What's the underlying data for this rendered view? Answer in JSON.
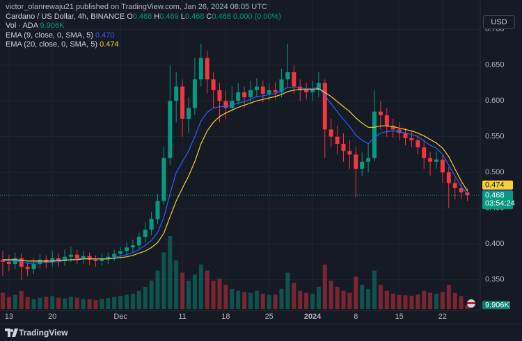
{
  "header": {
    "publisher": "victor_olanrewaju21 published on TradingView.com, Jan 26, 2024 08:05 UTC",
    "currency": "USD",
    "brand": "TradingView"
  },
  "chart_data": {
    "type": "candlestick",
    "title": "Cardano / US Dollar, 4h, BINANCE",
    "ohlc_legend": [
      {
        "key": "O",
        "value": 0.468
      },
      {
        "key": "H",
        "value": 0.469
      },
      {
        "key": "L",
        "value": 0.468
      },
      {
        "key": "C",
        "value": 0.468
      }
    ],
    "change": {
      "value": 0,
      "label": "0.000"
    },
    "change_pct": {
      "value": 0,
      "label": "(0.00%)"
    },
    "categories": [
      null,
      "13",
      null,
      null,
      null,
      null,
      null,
      null,
      "20",
      null,
      null,
      null,
      null,
      null,
      null,
      null,
      null,
      null,
      null,
      "Dec",
      null,
      null,
      null,
      null,
      null,
      null,
      null,
      null,
      null,
      "11",
      null,
      null,
      null,
      null,
      null,
      null,
      "18",
      null,
      null,
      null,
      null,
      null,
      null,
      "25",
      null,
      null,
      null,
      null,
      null,
      null,
      "2024",
      null,
      null,
      null,
      null,
      null,
      null,
      "8",
      null,
      null,
      null,
      null,
      null,
      null,
      "15",
      null,
      null,
      null,
      null,
      null,
      null,
      "22",
      null,
      null,
      null,
      null
    ],
    "open": [
      0.378,
      0.375,
      0.372,
      0.38,
      0.368,
      0.365,
      0.372,
      0.378,
      0.374,
      0.38,
      0.376,
      0.382,
      0.385,
      0.38,
      0.383,
      0.378,
      0.376,
      0.379,
      0.382,
      0.386,
      0.39,
      0.395,
      0.398,
      0.41,
      0.42,
      0.435,
      0.46,
      0.52,
      0.6,
      0.62,
      0.575,
      0.59,
      0.63,
      0.66,
      0.63,
      0.615,
      0.6,
      0.59,
      0.6,
      0.612,
      0.605,
      0.615,
      0.62,
      0.61,
      0.615,
      0.612,
      0.63,
      0.64,
      0.62,
      0.615,
      0.612,
      0.615,
      0.625,
      0.56,
      0.55,
      0.54,
      0.53,
      0.525,
      0.505,
      0.515,
      0.52,
      0.585,
      0.58,
      0.565,
      0.56,
      0.555,
      0.548,
      0.545,
      0.535,
      0.52,
      0.515,
      0.518,
      0.5,
      0.485,
      0.478,
      0.472
    ],
    "high": [
      0.39,
      0.385,
      0.388,
      0.386,
      0.374,
      0.38,
      0.386,
      0.384,
      0.39,
      0.386,
      0.392,
      0.396,
      0.392,
      0.39,
      0.388,
      0.384,
      0.386,
      0.388,
      0.392,
      0.396,
      0.402,
      0.406,
      0.416,
      0.43,
      0.445,
      0.47,
      0.535,
      0.65,
      0.64,
      0.63,
      0.605,
      0.66,
      0.68,
      0.67,
      0.64,
      0.625,
      0.615,
      0.62,
      0.625,
      0.62,
      0.628,
      0.632,
      0.628,
      0.625,
      0.626,
      0.645,
      0.68,
      0.65,
      0.63,
      0.625,
      0.628,
      0.64,
      0.63,
      0.575,
      0.565,
      0.555,
      0.545,
      0.535,
      0.528,
      0.54,
      0.615,
      0.6,
      0.59,
      0.575,
      0.57,
      0.562,
      0.558,
      0.552,
      0.545,
      0.528,
      0.53,
      0.525,
      0.508,
      0.492,
      0.485,
      0.478
    ],
    "low": [
      0.355,
      0.362,
      0.365,
      0.35,
      0.355,
      0.358,
      0.366,
      0.366,
      0.368,
      0.368,
      0.37,
      0.375,
      0.372,
      0.372,
      0.37,
      0.368,
      0.37,
      0.372,
      0.376,
      0.38,
      0.384,
      0.388,
      0.392,
      0.402,
      0.412,
      0.428,
      0.455,
      0.51,
      0.57,
      0.55,
      0.555,
      0.58,
      0.62,
      0.61,
      0.59,
      0.57,
      0.575,
      0.585,
      0.595,
      0.59,
      0.598,
      0.605,
      0.598,
      0.6,
      0.602,
      0.605,
      0.62,
      0.61,
      0.6,
      0.602,
      0.6,
      0.605,
      0.52,
      0.535,
      0.525,
      0.515,
      0.505,
      0.465,
      0.495,
      0.5,
      0.515,
      0.56,
      0.55,
      0.548,
      0.545,
      0.538,
      0.535,
      0.525,
      0.505,
      0.495,
      0.505,
      0.485,
      0.45,
      0.462,
      0.462,
      0.46
    ],
    "close": [
      0.375,
      0.372,
      0.38,
      0.368,
      0.365,
      0.372,
      0.378,
      0.374,
      0.38,
      0.376,
      0.382,
      0.385,
      0.38,
      0.383,
      0.378,
      0.376,
      0.379,
      0.382,
      0.386,
      0.39,
      0.395,
      0.398,
      0.41,
      0.42,
      0.435,
      0.46,
      0.52,
      0.6,
      0.62,
      0.575,
      0.59,
      0.63,
      0.66,
      0.63,
      0.615,
      0.6,
      0.59,
      0.6,
      0.612,
      0.605,
      0.615,
      0.62,
      0.61,
      0.615,
      0.612,
      0.63,
      0.64,
      0.62,
      0.615,
      0.612,
      0.615,
      0.625,
      0.56,
      0.55,
      0.54,
      0.53,
      0.525,
      0.505,
      0.515,
      0.52,
      0.585,
      0.58,
      0.565,
      0.56,
      0.555,
      0.548,
      0.545,
      0.535,
      0.52,
      0.515,
      0.518,
      0.5,
      0.485,
      0.478,
      0.472,
      0.468
    ],
    "up_color": "#089981",
    "down_color": "#f23645",
    "volume": {
      "name": "Vol · ADA",
      "values": [
        40000,
        30000,
        35000,
        45000,
        30000,
        25000,
        28000,
        30000,
        32000,
        28000,
        26000,
        30000,
        28000,
        25000,
        24000,
        22000,
        25000,
        27000,
        30000,
        32000,
        35000,
        38000,
        45000,
        55000,
        70000,
        95000,
        140000,
        180000,
        120000,
        90000,
        70000,
        85000,
        110000,
        95000,
        70000,
        75000,
        60000,
        50000,
        45000,
        42000,
        40000,
        45000,
        38000,
        35000,
        36000,
        50000,
        90000,
        65000,
        45000,
        40000,
        38000,
        55000,
        110000,
        70000,
        55000,
        45000,
        40000,
        80000,
        60000,
        50000,
        95000,
        60000,
        45000,
        38000,
        35000,
        34000,
        33000,
        36000,
        45000,
        40000,
        38000,
        42000,
        60000,
        40000,
        32000,
        9906
      ],
      "last": {
        "value": 9906,
        "label": "9.906K"
      }
    },
    "series": [
      {
        "name": "EMA (9, close, 0, SMA, 5)",
        "color": "#2962ff",
        "values": [
          0.377,
          0.376,
          0.377,
          0.375,
          0.373,
          0.373,
          0.374,
          0.374,
          0.375,
          0.375,
          0.377,
          0.378,
          0.379,
          0.38,
          0.379,
          0.379,
          0.379,
          0.379,
          0.381,
          0.383,
          0.385,
          0.388,
          0.392,
          0.398,
          0.405,
          0.416,
          0.437,
          0.47,
          0.5,
          0.515,
          0.53,
          0.55,
          0.572,
          0.584,
          0.59,
          0.592,
          0.592,
          0.594,
          0.597,
          0.599,
          0.602,
          0.606,
          0.607,
          0.609,
          0.61,
          0.614,
          0.619,
          0.619,
          0.618,
          0.617,
          0.617,
          0.619,
          0.607,
          0.596,
          0.585,
          0.574,
          0.564,
          0.552,
          0.545,
          0.54,
          0.549,
          0.555,
          0.557,
          0.558,
          0.557,
          0.555,
          0.553,
          0.55,
          0.544,
          0.538,
          0.534,
          0.525,
          0.51,
          0.495,
          0.48,
          0.47
        ],
        "last": {
          "value": 0.47,
          "label": "0.470"
        }
      },
      {
        "name": "EMA (20, close, 0, SMA, 5)",
        "color": "#f7d038",
        "values": [
          0.378,
          0.378,
          0.378,
          0.377,
          0.376,
          0.376,
          0.376,
          0.376,
          0.376,
          0.377,
          0.377,
          0.378,
          0.378,
          0.379,
          0.379,
          0.379,
          0.379,
          0.379,
          0.38,
          0.381,
          0.382,
          0.384,
          0.387,
          0.39,
          0.395,
          0.402,
          0.415,
          0.438,
          0.46,
          0.478,
          0.495,
          0.515,
          0.54,
          0.558,
          0.57,
          0.578,
          0.583,
          0.587,
          0.591,
          0.594,
          0.597,
          0.6,
          0.602,
          0.604,
          0.606,
          0.609,
          0.613,
          0.615,
          0.616,
          0.616,
          0.616,
          0.617,
          0.612,
          0.606,
          0.599,
          0.592,
          0.585,
          0.576,
          0.569,
          0.563,
          0.563,
          0.565,
          0.565,
          0.564,
          0.562,
          0.56,
          0.558,
          0.555,
          0.551,
          0.546,
          0.541,
          0.534,
          0.522,
          0.505,
          0.488,
          0.474
        ],
        "last": {
          "value": 0.474,
          "label": "0.474"
        }
      }
    ],
    "last_price": {
      "value": 0.468,
      "label": "0.468"
    },
    "countdown": "03:54:24",
    "ylim": [
      0.307,
      0.741
    ],
    "yticks": [
      {
        "value": 0.35,
        "label": "0.350"
      },
      {
        "value": 0.4,
        "label": "0.400"
      },
      {
        "value": 0.45,
        "label": "0.450"
      },
      {
        "value": 0.5,
        "label": "0.500"
      },
      {
        "value": 0.55,
        "label": "0.550"
      },
      {
        "value": 0.6,
        "label": "0.600"
      },
      {
        "value": 0.65,
        "label": "0.650"
      },
      {
        "value": 0.7,
        "label": "0.700"
      }
    ],
    "grid": true
  }
}
